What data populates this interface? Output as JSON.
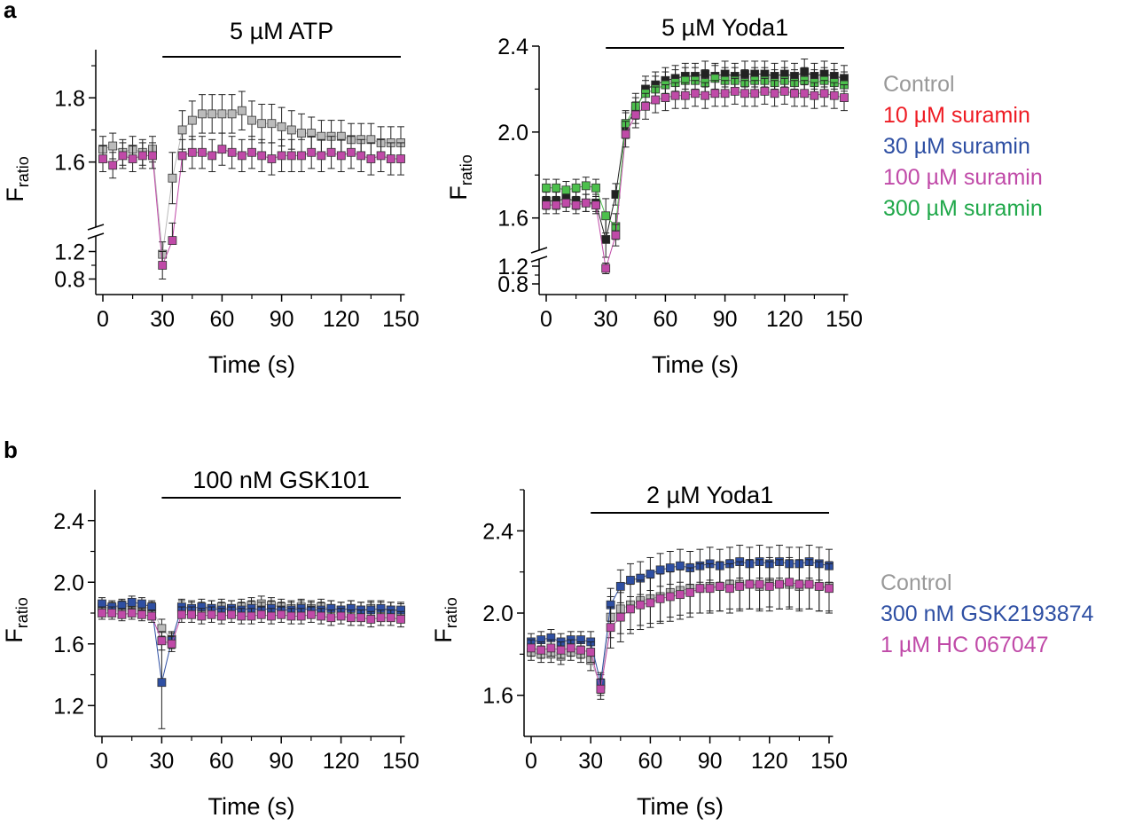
{
  "panel_labels": [
    "a",
    "b"
  ],
  "legend_a": [
    {
      "label": "Control",
      "color": "#999999"
    },
    {
      "label": "10 µM suramin",
      "color": "#ee1c24"
    },
    {
      "label": "30 µM suramin",
      "color": "#2e4fa3"
    },
    {
      "label": "100 µM suramin",
      "color": "#c04aa8"
    },
    {
      "label": "300 µM suramin",
      "color": "#20a84a"
    }
  ],
  "legend_b": [
    {
      "label": "Control",
      "color": "#999999"
    },
    {
      "label": "300 nM GSK2193874",
      "color": "#2e4fa3"
    },
    {
      "label": "1 µM HC 067047",
      "color": "#c04aa8"
    }
  ],
  "chart_data": [
    {
      "type": "scatter",
      "panel": "a",
      "title": "5 µM ATP",
      "xlabel": "Time (s)",
      "ylabel": "F",
      "ylabel_sub": "ratio",
      "xlim": [
        -2,
        152
      ],
      "xticks": [
        0,
        30,
        60,
        90,
        120,
        150
      ],
      "y_segments": [
        {
          "range": [
            0.6,
            1.4
          ],
          "ticks": [
            0.8,
            1.2
          ]
        },
        {
          "range": [
            1.4,
            1.95
          ],
          "ticks": [
            1.6,
            1.8
          ]
        }
      ],
      "stimulus_bar": [
        30,
        150
      ],
      "x": [
        0,
        5,
        10,
        15,
        20,
        25,
        30,
        35,
        40,
        45,
        50,
        55,
        60,
        65,
        70,
        75,
        80,
        85,
        90,
        95,
        100,
        105,
        110,
        115,
        120,
        125,
        130,
        135,
        140,
        145,
        150
      ],
      "series": [
        {
          "name": "Control",
          "color": "#bbbbbb",
          "y": [
            1.64,
            1.65,
            1.63,
            1.64,
            1.63,
            1.64,
            1.16,
            1.55,
            1.7,
            1.73,
            1.75,
            1.75,
            1.75,
            1.75,
            1.76,
            1.73,
            1.72,
            1.72,
            1.71,
            1.7,
            1.69,
            1.69,
            1.68,
            1.68,
            1.68,
            1.67,
            1.67,
            1.67,
            1.66,
            1.66,
            1.66
          ],
          "err": [
            0.04,
            0.04,
            0.04,
            0.04,
            0.04,
            0.04,
            0.18,
            0.08,
            0.06,
            0.06,
            0.06,
            0.06,
            0.06,
            0.06,
            0.06,
            0.06,
            0.06,
            0.06,
            0.06,
            0.06,
            0.06,
            0.05,
            0.05,
            0.05,
            0.05,
            0.05,
            0.05,
            0.05,
            0.05,
            0.05,
            0.05
          ]
        },
        {
          "name": "100 µM suramin",
          "color": "#c04aa8",
          "y": [
            1.61,
            1.59,
            1.62,
            1.61,
            1.62,
            1.62,
            1.0,
            1.36,
            1.62,
            1.63,
            1.63,
            1.62,
            1.64,
            1.63,
            1.62,
            1.63,
            1.62,
            1.61,
            1.62,
            1.62,
            1.62,
            1.63,
            1.62,
            1.63,
            1.62,
            1.63,
            1.62,
            1.61,
            1.62,
            1.61,
            1.61
          ],
          "err": [
            0.04,
            0.04,
            0.04,
            0.04,
            0.04,
            0.04,
            0.2,
            0.05,
            0.05,
            0.05,
            0.05,
            0.05,
            0.05,
            0.05,
            0.05,
            0.05,
            0.05,
            0.05,
            0.05,
            0.05,
            0.05,
            0.05,
            0.05,
            0.05,
            0.05,
            0.05,
            0.05,
            0.05,
            0.05,
            0.05,
            0.05
          ]
        }
      ]
    },
    {
      "type": "scatter",
      "panel": "a",
      "title": "5 µM Yoda1",
      "xlabel": "Time (s)",
      "ylabel": "F",
      "ylabel_sub": "ratio",
      "xlim": [
        -2,
        152
      ],
      "xticks": [
        0,
        30,
        60,
        90,
        120,
        150
      ],
      "y_segments": [
        {
          "range": [
            0.6,
            1.4
          ],
          "ticks": [
            0.8,
            1.2
          ]
        },
        {
          "range": [
            1.45,
            2.4
          ],
          "ticks": [
            1.6,
            2.0,
            2.4
          ]
        }
      ],
      "stimulus_bar": [
        30,
        150
      ],
      "x": [
        0,
        5,
        10,
        15,
        20,
        25,
        30,
        35,
        40,
        45,
        50,
        55,
        60,
        65,
        70,
        75,
        80,
        85,
        90,
        95,
        100,
        105,
        110,
        115,
        120,
        125,
        130,
        135,
        140,
        145,
        150
      ],
      "series": [
        {
          "name": "Control",
          "color": "#222222",
          "y": [
            1.68,
            1.68,
            1.69,
            1.68,
            1.67,
            1.67,
            1.5,
            1.71,
            2.03,
            2.1,
            2.2,
            2.22,
            2.24,
            2.25,
            2.26,
            2.26,
            2.27,
            2.26,
            2.27,
            2.26,
            2.27,
            2.27,
            2.27,
            2.26,
            2.27,
            2.26,
            2.28,
            2.26,
            2.27,
            2.26,
            2.25
          ],
          "err": [
            0.04,
            0.04,
            0.04,
            0.04,
            0.04,
            0.04,
            0.1,
            0.05,
            0.06,
            0.06,
            0.06,
            0.06,
            0.06,
            0.06,
            0.06,
            0.06,
            0.06,
            0.06,
            0.06,
            0.06,
            0.06,
            0.06,
            0.06,
            0.06,
            0.06,
            0.06,
            0.06,
            0.06,
            0.06,
            0.06,
            0.06
          ]
        },
        {
          "name": "300 µM suramin",
          "color": "#4cc04c",
          "y": [
            1.74,
            1.74,
            1.73,
            1.74,
            1.75,
            1.74,
            1.61,
            1.56,
            2.04,
            2.12,
            2.18,
            2.2,
            2.22,
            2.23,
            2.24,
            2.24,
            2.23,
            2.25,
            2.24,
            2.24,
            2.23,
            2.24,
            2.24,
            2.23,
            2.24,
            2.23,
            2.24,
            2.23,
            2.24,
            2.23,
            2.22
          ],
          "err": [
            0.04,
            0.04,
            0.04,
            0.04,
            0.04,
            0.04,
            0.08,
            0.06,
            0.06,
            0.06,
            0.06,
            0.06,
            0.06,
            0.06,
            0.06,
            0.06,
            0.06,
            0.06,
            0.06,
            0.06,
            0.06,
            0.06,
            0.06,
            0.06,
            0.06,
            0.06,
            0.06,
            0.06,
            0.06,
            0.06,
            0.06
          ]
        },
        {
          "name": "100 µM suramin",
          "color": "#c04aa8",
          "y": [
            1.66,
            1.66,
            1.67,
            1.66,
            1.67,
            1.66,
            1.15,
            1.52,
            1.99,
            2.08,
            2.12,
            2.15,
            2.16,
            2.17,
            2.17,
            2.18,
            2.17,
            2.18,
            2.18,
            2.19,
            2.18,
            2.18,
            2.19,
            2.18,
            2.19,
            2.18,
            2.18,
            2.17,
            2.18,
            2.17,
            2.16
          ],
          "err": [
            0.04,
            0.04,
            0.04,
            0.04,
            0.04,
            0.04,
            0.12,
            0.05,
            0.06,
            0.06,
            0.06,
            0.06,
            0.06,
            0.06,
            0.06,
            0.06,
            0.06,
            0.06,
            0.06,
            0.06,
            0.06,
            0.06,
            0.06,
            0.06,
            0.06,
            0.06,
            0.06,
            0.06,
            0.06,
            0.06,
            0.06
          ]
        }
      ]
    },
    {
      "type": "scatter",
      "panel": "b",
      "title": "100 nM GSK101",
      "xlabel": "Time (s)",
      "ylabel": "F",
      "ylabel_sub": "ratio",
      "xlim": [
        -2,
        152
      ],
      "xticks": [
        0,
        30,
        60,
        90,
        120,
        150
      ],
      "y_segments": [
        {
          "range": [
            1.0,
            2.6
          ],
          "ticks": [
            1.2,
            1.6,
            2.0,
            2.4
          ]
        }
      ],
      "stimulus_bar": [
        30,
        150
      ],
      "x": [
        0,
        5,
        10,
        15,
        20,
        25,
        30,
        35,
        40,
        45,
        50,
        55,
        60,
        65,
        70,
        75,
        80,
        85,
        90,
        95,
        100,
        105,
        110,
        115,
        120,
        125,
        130,
        135,
        140,
        145,
        150
      ],
      "series": [
        {
          "name": "Control",
          "color": "#bbbbbb",
          "y": [
            1.84,
            1.83,
            1.84,
            1.85,
            1.84,
            1.83,
            1.7,
            1.63,
            1.83,
            1.82,
            1.82,
            1.83,
            1.84,
            1.83,
            1.84,
            1.85,
            1.86,
            1.85,
            1.84,
            1.83,
            1.84,
            1.83,
            1.84,
            1.83,
            1.82,
            1.83,
            1.82,
            1.83,
            1.82,
            1.82,
            1.81
          ],
          "err": [
            0.04,
            0.04,
            0.04,
            0.04,
            0.04,
            0.04,
            0.06,
            0.05,
            0.05,
            0.05,
            0.05,
            0.05,
            0.05,
            0.05,
            0.05,
            0.05,
            0.05,
            0.05,
            0.05,
            0.05,
            0.05,
            0.05,
            0.05,
            0.05,
            0.05,
            0.05,
            0.05,
            0.05,
            0.05,
            0.05,
            0.05
          ]
        },
        {
          "name": "300 nM GSK2193874",
          "color": "#2e4fa3",
          "y": [
            1.86,
            1.84,
            1.85,
            1.87,
            1.86,
            1.84,
            1.35,
            1.62,
            1.84,
            1.83,
            1.84,
            1.83,
            1.82,
            1.83,
            1.82,
            1.83,
            1.82,
            1.83,
            1.82,
            1.82,
            1.83,
            1.82,
            1.82,
            1.83,
            1.82,
            1.83,
            1.82,
            1.82,
            1.83,
            1.82,
            1.82
          ],
          "err": [
            0.04,
            0.04,
            0.04,
            0.04,
            0.04,
            0.04,
            0.3,
            0.05,
            0.05,
            0.05,
            0.05,
            0.05,
            0.05,
            0.05,
            0.05,
            0.05,
            0.05,
            0.05,
            0.05,
            0.05,
            0.05,
            0.05,
            0.05,
            0.05,
            0.05,
            0.05,
            0.05,
            0.05,
            0.05,
            0.05,
            0.05
          ]
        },
        {
          "name": "1 µM HC 067047",
          "color": "#c04aa8",
          "y": [
            1.8,
            1.8,
            1.79,
            1.8,
            1.79,
            1.78,
            1.62,
            1.6,
            1.79,
            1.79,
            1.78,
            1.79,
            1.78,
            1.79,
            1.78,
            1.78,
            1.79,
            1.78,
            1.79,
            1.78,
            1.78,
            1.79,
            1.78,
            1.77,
            1.78,
            1.77,
            1.77,
            1.76,
            1.77,
            1.77,
            1.76
          ],
          "err": [
            0.04,
            0.04,
            0.04,
            0.04,
            0.04,
            0.04,
            0.06,
            0.05,
            0.05,
            0.05,
            0.05,
            0.05,
            0.05,
            0.05,
            0.05,
            0.05,
            0.05,
            0.05,
            0.05,
            0.05,
            0.05,
            0.05,
            0.05,
            0.05,
            0.05,
            0.05,
            0.05,
            0.05,
            0.05,
            0.05,
            0.05
          ]
        }
      ]
    },
    {
      "type": "scatter",
      "panel": "b",
      "title": "2 µM Yoda1",
      "xlabel": "Time (s)",
      "ylabel": "F",
      "ylabel_sub": "ratio",
      "xlim": [
        -2,
        152
      ],
      "xticks": [
        0,
        30,
        60,
        90,
        120,
        150
      ],
      "y_segments": [
        {
          "range": [
            1.4,
            2.6
          ],
          "ticks": [
            1.6,
            2.0,
            2.4
          ]
        }
      ],
      "stimulus_bar": [
        30,
        150
      ],
      "x": [
        0,
        5,
        10,
        15,
        20,
        25,
        30,
        35,
        40,
        45,
        50,
        55,
        60,
        65,
        70,
        75,
        80,
        85,
        90,
        95,
        100,
        105,
        110,
        115,
        120,
        125,
        130,
        135,
        140,
        145,
        150
      ],
      "series": [
        {
          "name": "Control",
          "color": "#bbbbbb",
          "y": [
            1.81,
            1.8,
            1.8,
            1.79,
            1.81,
            1.8,
            1.77,
            1.65,
            1.98,
            2.02,
            2.04,
            2.06,
            2.07,
            2.08,
            2.1,
            2.11,
            2.12,
            2.12,
            2.13,
            2.13,
            2.14,
            2.14,
            2.14,
            2.13,
            2.15,
            2.14,
            2.14,
            2.13,
            2.14,
            2.13,
            2.13
          ],
          "err": [
            0.04,
            0.04,
            0.04,
            0.04,
            0.04,
            0.04,
            0.05,
            0.05,
            0.1,
            0.12,
            0.12,
            0.12,
            0.12,
            0.12,
            0.12,
            0.12,
            0.12,
            0.12,
            0.12,
            0.12,
            0.12,
            0.12,
            0.12,
            0.12,
            0.12,
            0.12,
            0.12,
            0.12,
            0.12,
            0.12,
            0.12
          ]
        },
        {
          "name": "300 nM GSK2193874",
          "color": "#2e4fa3",
          "y": [
            1.86,
            1.87,
            1.88,
            1.86,
            1.87,
            1.87,
            1.86,
            1.66,
            2.04,
            2.13,
            2.16,
            2.17,
            2.19,
            2.21,
            2.22,
            2.23,
            2.22,
            2.23,
            2.24,
            2.23,
            2.24,
            2.25,
            2.24,
            2.25,
            2.24,
            2.25,
            2.24,
            2.24,
            2.25,
            2.24,
            2.23
          ],
          "err": [
            0.04,
            0.04,
            0.04,
            0.04,
            0.04,
            0.04,
            0.05,
            0.05,
            0.08,
            0.08,
            0.08,
            0.08,
            0.08,
            0.08,
            0.08,
            0.08,
            0.08,
            0.08,
            0.08,
            0.08,
            0.08,
            0.08,
            0.08,
            0.08,
            0.08,
            0.08,
            0.08,
            0.08,
            0.08,
            0.08,
            0.08
          ]
        },
        {
          "name": "1 µM HC 067047",
          "color": "#c04aa8",
          "y": [
            1.83,
            1.82,
            1.83,
            1.82,
            1.83,
            1.82,
            1.81,
            1.63,
            1.93,
            1.98,
            2.02,
            2.04,
            2.05,
            2.07,
            2.08,
            2.09,
            2.1,
            2.12,
            2.12,
            2.13,
            2.12,
            2.13,
            2.14,
            2.14,
            2.13,
            2.14,
            2.15,
            2.14,
            2.14,
            2.13,
            2.12
          ],
          "err": [
            0.04,
            0.04,
            0.04,
            0.04,
            0.04,
            0.04,
            0.05,
            0.05,
            0.1,
            0.12,
            0.12,
            0.12,
            0.12,
            0.12,
            0.12,
            0.12,
            0.12,
            0.12,
            0.12,
            0.12,
            0.12,
            0.12,
            0.12,
            0.12,
            0.12,
            0.12,
            0.12,
            0.12,
            0.12,
            0.12,
            0.12
          ]
        }
      ]
    }
  ]
}
